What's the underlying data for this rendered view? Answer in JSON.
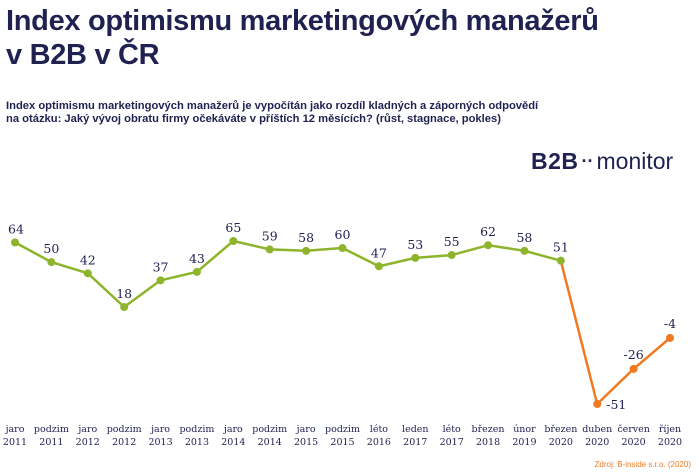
{
  "header": {
    "title_line1": "Index optimismu marketingových manažerů",
    "title_line2": "v B2B v ČR",
    "subtitle_line1": "Index optimismu marketingových manažerů je vypočítán jako rozdíl kladných a záporných odpovědí",
    "subtitle_line2": "na otázku: Jaký vývoj obratu firmy očekáváte v příštích 12 měsících? (růst, stagnace, pokles)"
  },
  "brand": {
    "b2b": "B2B",
    "dots": "··",
    "monitor": "monitor"
  },
  "source": "Zdroj: B-inside s.r.o. (2020)",
  "colors": {
    "series_green": "#8db42b",
    "series_orange": "#f07a22",
    "text_navy": "#1f2151"
  },
  "chart_data": {
    "type": "line",
    "categories": [
      [
        "jaro",
        "2011"
      ],
      [
        "podzim",
        "2011"
      ],
      [
        "jaro",
        "2012"
      ],
      [
        "podzim",
        "2012"
      ],
      [
        "jaro",
        "2013"
      ],
      [
        "podzim",
        "2013"
      ],
      [
        "jaro",
        "2014"
      ],
      [
        "podzim",
        "2014"
      ],
      [
        "jaro",
        "2015"
      ],
      [
        "podzim",
        "2015"
      ],
      [
        "léto",
        "2016"
      ],
      [
        "leden",
        "2017"
      ],
      [
        "léto",
        "2017"
      ],
      [
        "březen",
        "2018"
      ],
      [
        "únor",
        "2019"
      ],
      [
        "březen",
        "2020"
      ],
      [
        "duben",
        "2020"
      ],
      [
        "červen",
        "2020"
      ],
      [
        "říjen",
        "2020"
      ]
    ],
    "values": [
      64,
      50,
      42,
      18,
      37,
      43,
      65,
      59,
      58,
      60,
      47,
      53,
      55,
      62,
      58,
      51,
      -51,
      -26,
      -4
    ],
    "orange_from_index": 15,
    "ylim": [
      -55,
      70
    ],
    "grid": false,
    "legend": "none"
  }
}
